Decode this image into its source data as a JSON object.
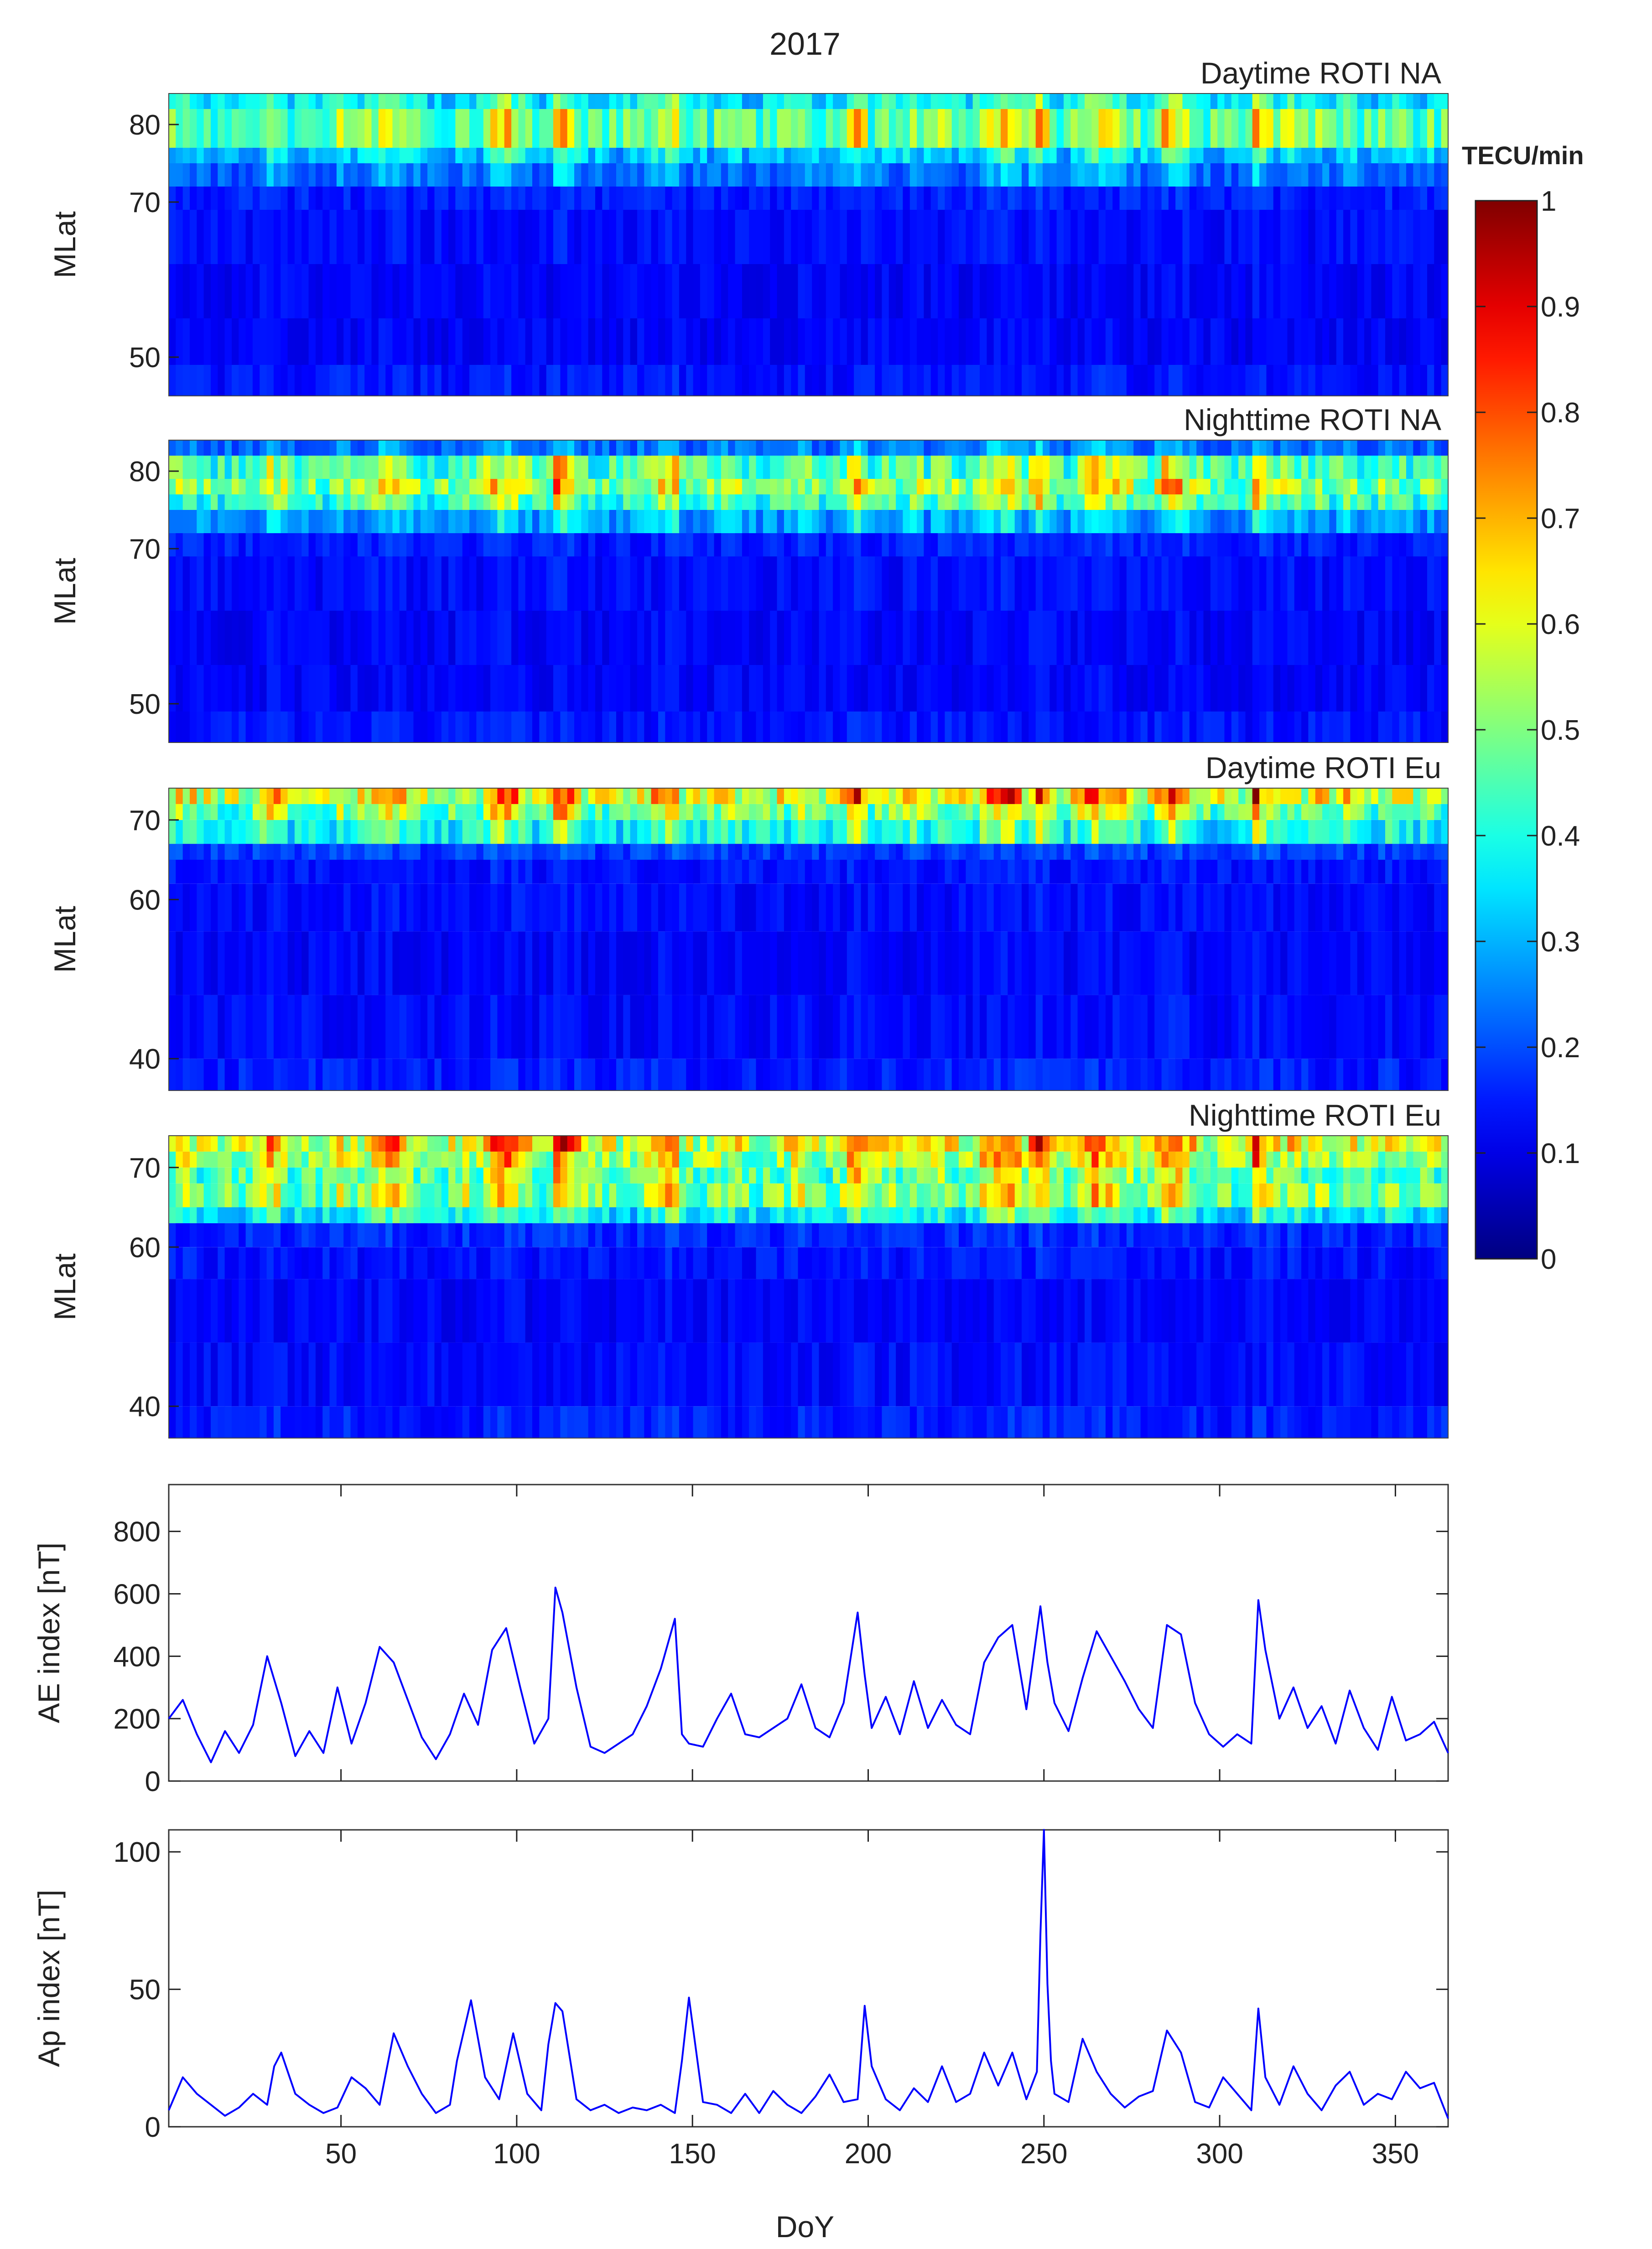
{
  "figure": {
    "title": "2017"
  },
  "colorbar": {
    "unit": "TECU/min",
    "min": 0,
    "max": 1,
    "ticks": [
      0,
      0.1,
      0.2,
      0.3,
      0.4,
      0.5,
      0.6,
      0.7,
      0.8,
      0.9,
      1
    ],
    "tick_labels": [
      "0",
      "0.1",
      "0.2",
      "0.3",
      "0.4",
      "0.5",
      "0.6",
      "0.7",
      "0.8",
      "0.9",
      "1"
    ],
    "colormap": "jet"
  },
  "chart_data": [
    {
      "type": "heatmap",
      "title": "Daytime ROTI NA",
      "xlabel": "",
      "ylabel": "MLat",
      "xlim": [
        1,
        365
      ],
      "ylim": [
        45,
        84
      ],
      "y_ticks": [
        50,
        70,
        80
      ],
      "y_tick_labels": [
        "50",
        "70",
        "80"
      ],
      "region": "NA",
      "bands": [
        {
          "lat_range": [
            45,
            49
          ],
          "level": 0.14
        },
        {
          "lat_range": [
            49,
            55
          ],
          "level": 0.12
        },
        {
          "lat_range": [
            55,
            62
          ],
          "level": 0.12
        },
        {
          "lat_range": [
            62,
            69
          ],
          "level": 0.13
        },
        {
          "lat_range": [
            69,
            72
          ],
          "level": 0.15
        },
        {
          "lat_range": [
            72,
            75
          ],
          "level": 0.22
        },
        {
          "lat_range": [
            75,
            77
          ],
          "level": 0.3
        },
        {
          "lat_range": [
            77,
            82
          ],
          "level": 0.44
        },
        {
          "lat_range": [
            82,
            84
          ],
          "level": 0.34
        }
      ]
    },
    {
      "type": "heatmap",
      "title": "Nighttime ROTI NA",
      "xlabel": "",
      "ylabel": "MLat",
      "xlim": [
        1,
        365
      ],
      "ylim": [
        45,
        84
      ],
      "y_ticks": [
        50,
        70,
        80
      ],
      "y_tick_labels": [
        "50",
        "70",
        "80"
      ],
      "region": "NA",
      "bands": [
        {
          "lat_range": [
            45,
            49
          ],
          "level": 0.14
        },
        {
          "lat_range": [
            49,
            55
          ],
          "level": 0.12
        },
        {
          "lat_range": [
            55,
            62
          ],
          "level": 0.12
        },
        {
          "lat_range": [
            62,
            69
          ],
          "level": 0.13
        },
        {
          "lat_range": [
            69,
            72
          ],
          "level": 0.15
        },
        {
          "lat_range": [
            72,
            75
          ],
          "level": 0.26
        },
        {
          "lat_range": [
            75,
            77
          ],
          "level": 0.4
        },
        {
          "lat_range": [
            77,
            79
          ],
          "level": 0.48
        },
        {
          "lat_range": [
            79,
            82
          ],
          "level": 0.42
        },
        {
          "lat_range": [
            82,
            84
          ],
          "level": 0.22
        }
      ]
    },
    {
      "type": "heatmap",
      "title": "Daytime ROTI Eu",
      "xlabel": "",
      "ylabel": "MLat",
      "xlim": [
        1,
        365
      ],
      "ylim": [
        36,
        74
      ],
      "y_ticks": [
        40,
        60,
        70
      ],
      "y_tick_labels": [
        "40",
        "60",
        "70"
      ],
      "region": "Eu",
      "bands": [
        {
          "lat_range": [
            36,
            40
          ],
          "level": 0.15
        },
        {
          "lat_range": [
            40,
            48
          ],
          "level": 0.13
        },
        {
          "lat_range": [
            48,
            56
          ],
          "level": 0.12
        },
        {
          "lat_range": [
            56,
            62
          ],
          "level": 0.13
        },
        {
          "lat_range": [
            62,
            65
          ],
          "level": 0.14
        },
        {
          "lat_range": [
            65,
            67
          ],
          "level": 0.18
        },
        {
          "lat_range": [
            67,
            70
          ],
          "level": 0.36
        },
        {
          "lat_range": [
            70,
            72
          ],
          "level": 0.45
        },
        {
          "lat_range": [
            72,
            74
          ],
          "level": 0.56
        }
      ]
    },
    {
      "type": "heatmap",
      "title": "Nighttime ROTI Eu",
      "xlabel": "",
      "ylabel": "MLat",
      "xlim": [
        1,
        365
      ],
      "ylim": [
        36,
        74
      ],
      "y_ticks": [
        40,
        60,
        70
      ],
      "y_tick_labels": [
        "40",
        "60",
        "70"
      ],
      "region": "Eu",
      "bands": [
        {
          "lat_range": [
            36,
            40
          ],
          "level": 0.15
        },
        {
          "lat_range": [
            40,
            48
          ],
          "level": 0.13
        },
        {
          "lat_range": [
            48,
            56
          ],
          "level": 0.12
        },
        {
          "lat_range": [
            56,
            60
          ],
          "level": 0.14
        },
        {
          "lat_range": [
            60,
            63
          ],
          "level": 0.16
        },
        {
          "lat_range": [
            63,
            65
          ],
          "level": 0.34
        },
        {
          "lat_range": [
            65,
            68
          ],
          "level": 0.47
        },
        {
          "lat_range": [
            68,
            70
          ],
          "level": 0.44
        },
        {
          "lat_range": [
            70,
            72
          ],
          "level": 0.5
        },
        {
          "lat_range": [
            72,
            74
          ],
          "level": 0.56
        }
      ]
    },
    {
      "type": "line",
      "title": "",
      "xlabel": "",
      "ylabel": "AE index [nT]",
      "xlim": [
        1,
        365
      ],
      "ylim": [
        0,
        950
      ],
      "x_ticks": [
        50,
        100,
        150,
        200,
        250,
        300,
        350
      ],
      "y_ticks": [
        0,
        200,
        400,
        600,
        800
      ],
      "y_tick_labels": [
        "0",
        "200",
        "400",
        "600",
        "800"
      ],
      "color": "#0000ff",
      "x": [
        1,
        5,
        9,
        13,
        17,
        21,
        25,
        29,
        33,
        37,
        41,
        45,
        49,
        53,
        57,
        61,
        65,
        69,
        73,
        77,
        81,
        85,
        89,
        93,
        97,
        101,
        105,
        109,
        111,
        113,
        117,
        121,
        125,
        129,
        133,
        137,
        141,
        145,
        147,
        149,
        153,
        157,
        161,
        165,
        169,
        173,
        177,
        181,
        185,
        189,
        193,
        197,
        199,
        201,
        205,
        209,
        213,
        217,
        221,
        225,
        229,
        233,
        237,
        241,
        245,
        249,
        251,
        253,
        257,
        261,
        265,
        269,
        273,
        277,
        281,
        285,
        289,
        293,
        297,
        301,
        305,
        309,
        311,
        313,
        317,
        321,
        325,
        329,
        333,
        337,
        341,
        345,
        349,
        353,
        357,
        361,
        365
      ],
      "values": [
        200,
        260,
        150,
        60,
        160,
        90,
        180,
        400,
        250,
        80,
        160,
        90,
        300,
        120,
        250,
        430,
        380,
        260,
        140,
        70,
        150,
        280,
        180,
        420,
        490,
        300,
        120,
        200,
        620,
        540,
        300,
        110,
        90,
        120,
        150,
        240,
        360,
        520,
        150,
        120,
        110,
        200,
        280,
        150,
        140,
        170,
        200,
        310,
        170,
        140,
        250,
        540,
        340,
        170,
        270,
        150,
        320,
        170,
        260,
        180,
        150,
        380,
        460,
        500,
        230,
        560,
        380,
        250,
        160,
        330,
        480,
        400,
        320,
        230,
        170,
        500,
        470,
        250,
        150,
        110,
        150,
        120,
        580,
        420,
        200,
        300,
        170,
        240,
        120,
        290,
        170,
        100,
        270,
        130,
        150,
        190,
        90
      ]
    },
    {
      "type": "line",
      "title": "",
      "xlabel": "DoY",
      "ylabel": "Ap index [nT]",
      "xlim": [
        1,
        365
      ],
      "ylim": [
        0,
        108
      ],
      "x_ticks": [
        50,
        100,
        150,
        200,
        250,
        300,
        350
      ],
      "x_tick_labels": [
        "50",
        "100",
        "150",
        "200",
        "250",
        "300",
        "350"
      ],
      "y_ticks": [
        0,
        50,
        100
      ],
      "y_tick_labels": [
        "0",
        "50",
        "100"
      ],
      "color": "#0000ff",
      "x": [
        1,
        5,
        9,
        13,
        17,
        21,
        25,
        29,
        31,
        33,
        37,
        41,
        45,
        49,
        53,
        57,
        61,
        65,
        69,
        73,
        77,
        81,
        83,
        87,
        91,
        95,
        99,
        103,
        107,
        109,
        111,
        113,
        117,
        121,
        125,
        129,
        133,
        137,
        141,
        145,
        147,
        149,
        153,
        157,
        161,
        165,
        169,
        173,
        177,
        181,
        185,
        189,
        193,
        197,
        199,
        201,
        205,
        209,
        213,
        217,
        221,
        225,
        229,
        233,
        237,
        241,
        245,
        248,
        249,
        250,
        251,
        252,
        253,
        257,
        261,
        265,
        269,
        273,
        277,
        281,
        285,
        289,
        293,
        297,
        301,
        305,
        309,
        311,
        313,
        317,
        321,
        325,
        329,
        333,
        337,
        341,
        345,
        349,
        353,
        357,
        361,
        365
      ],
      "values": [
        6,
        18,
        12,
        8,
        4,
        7,
        12,
        8,
        22,
        27,
        12,
        8,
        5,
        7,
        18,
        14,
        8,
        34,
        22,
        12,
        5,
        8,
        24,
        46,
        18,
        10,
        34,
        12,
        6,
        30,
        45,
        42,
        10,
        6,
        8,
        5,
        7,
        6,
        8,
        5,
        24,
        47,
        9,
        8,
        5,
        12,
        5,
        13,
        8,
        5,
        11,
        19,
        9,
        10,
        44,
        22,
        10,
        6,
        14,
        9,
        22,
        9,
        12,
        27,
        15,
        27,
        10,
        20,
        70,
        108,
        52,
        24,
        12,
        9,
        32,
        20,
        12,
        7,
        11,
        13,
        35,
        27,
        9,
        7,
        18,
        12,
        6,
        43,
        18,
        8,
        22,
        12,
        6,
        15,
        20,
        8,
        12,
        10,
        20,
        14,
        16,
        3
      ]
    }
  ]
}
